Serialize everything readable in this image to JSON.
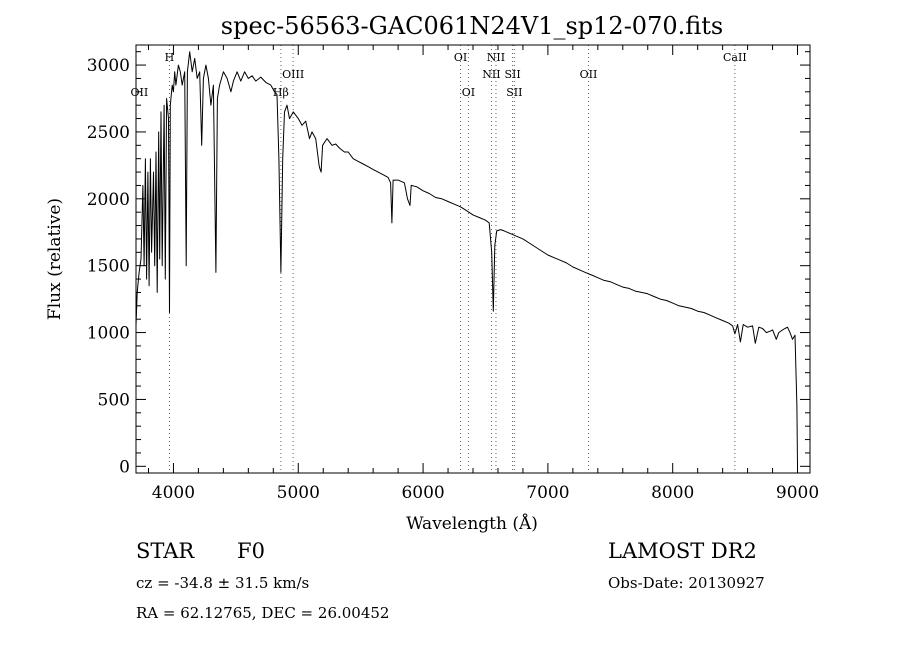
{
  "chart_data": {
    "type": "line",
    "title": "spec-56563-GAC061N24V1_sp12-070.fits",
    "xlabel": "Wavelength (Å)",
    "ylabel": "Flux (relative)",
    "xlim": [
      3700,
      9100
    ],
    "ylim": [
      -50,
      3150
    ],
    "xticks": [
      4000,
      5000,
      6000,
      7000,
      8000,
      9000
    ],
    "yticks": [
      0,
      500,
      1000,
      1500,
      2000,
      2500,
      3000
    ],
    "xtick_labels": [
      "4000",
      "5000",
      "6000",
      "7000",
      "8000",
      "9000"
    ],
    "ytick_labels": [
      "0",
      "500",
      "1000",
      "1500",
      "2000",
      "2500",
      "3000"
    ],
    "grid": false,
    "series": [
      {
        "color": "#000000",
        "points": [
          [
            3700,
            1050
          ],
          [
            3710,
            1300
          ],
          [
            3725,
            1450
          ],
          [
            3740,
            1550
          ],
          [
            3755,
            2100
          ],
          [
            3765,
            1500
          ],
          [
            3775,
            2300
          ],
          [
            3785,
            1400
          ],
          [
            3795,
            2200
          ],
          [
            3805,
            1350
          ],
          [
            3815,
            2300
          ],
          [
            3825,
            1600
          ],
          [
            3840,
            2200
          ],
          [
            3850,
            1500
          ],
          [
            3860,
            2350
          ],
          [
            3870,
            1300
          ],
          [
            3882,
            2500
          ],
          [
            3890,
            1550
          ],
          [
            3900,
            2650
          ],
          [
            3910,
            1500
          ],
          [
            3925,
            2700
          ],
          [
            3935,
            1400
          ],
          [
            3945,
            2750
          ],
          [
            3960,
            2600
          ],
          [
            3968,
            1150
          ],
          [
            3975,
            2700
          ],
          [
            3990,
            2850
          ],
          [
            4000,
            2800
          ],
          [
            4010,
            2950
          ],
          [
            4020,
            2850
          ],
          [
            4040,
            3000
          ],
          [
            4055,
            2950
          ],
          [
            4070,
            2850
          ],
          [
            4090,
            2950
          ],
          [
            4102,
            1500
          ],
          [
            4112,
            2950
          ],
          [
            4130,
            3100
          ],
          [
            4150,
            2950
          ],
          [
            4170,
            3050
          ],
          [
            4190,
            2900
          ],
          [
            4210,
            2950
          ],
          [
            4226,
            2400
          ],
          [
            4240,
            2900
          ],
          [
            4260,
            3000
          ],
          [
            4280,
            2900
          ],
          [
            4300,
            2700
          ],
          [
            4320,
            2850
          ],
          [
            4340,
            1450
          ],
          [
            4352,
            2750
          ],
          [
            4370,
            2850
          ],
          [
            4400,
            2950
          ],
          [
            4430,
            2900
          ],
          [
            4460,
            2800
          ],
          [
            4480,
            2880
          ],
          [
            4510,
            2950
          ],
          [
            4540,
            2880
          ],
          [
            4570,
            2950
          ],
          [
            4600,
            2900
          ],
          [
            4630,
            2920
          ],
          [
            4660,
            2880
          ],
          [
            4700,
            2910
          ],
          [
            4740,
            2870
          ],
          [
            4780,
            2850
          ],
          [
            4810,
            2800
          ],
          [
            4830,
            2780
          ],
          [
            4845,
            2300
          ],
          [
            4861,
            1450
          ],
          [
            4875,
            2300
          ],
          [
            4890,
            2650
          ],
          [
            4910,
            2700
          ],
          [
            4930,
            2600
          ],
          [
            4960,
            2650
          ],
          [
            5000,
            2600
          ],
          [
            5030,
            2550
          ],
          [
            5060,
            2580
          ],
          [
            5090,
            2450
          ],
          [
            5110,
            2500
          ],
          [
            5140,
            2450
          ],
          [
            5167,
            2250
          ],
          [
            5172,
            2230
          ],
          [
            5183,
            2200
          ],
          [
            5195,
            2400
          ],
          [
            5230,
            2450
          ],
          [
            5270,
            2400
          ],
          [
            5300,
            2410
          ],
          [
            5330,
            2380
          ],
          [
            5370,
            2350
          ],
          [
            5400,
            2350
          ],
          [
            5440,
            2300
          ],
          [
            5480,
            2280
          ],
          [
            5520,
            2260
          ],
          [
            5560,
            2240
          ],
          [
            5600,
            2220
          ],
          [
            5640,
            2200
          ],
          [
            5680,
            2180
          ],
          [
            5720,
            2160
          ],
          [
            5740,
            2120
          ],
          [
            5750,
            1820
          ],
          [
            5760,
            2140
          ],
          [
            5800,
            2140
          ],
          [
            5850,
            2120
          ],
          [
            5875,
            2000
          ],
          [
            5895,
            1950
          ],
          [
            5905,
            2100
          ],
          [
            5950,
            2090
          ],
          [
            6000,
            2060
          ],
          [
            6050,
            2040
          ],
          [
            6100,
            2010
          ],
          [
            6150,
            2000
          ],
          [
            6200,
            1980
          ],
          [
            6250,
            1960
          ],
          [
            6300,
            1940
          ],
          [
            6350,
            1910
          ],
          [
            6400,
            1880
          ],
          [
            6450,
            1860
          ],
          [
            6500,
            1840
          ],
          [
            6530,
            1820
          ],
          [
            6550,
            1600
          ],
          [
            6563,
            1160
          ],
          [
            6575,
            1650
          ],
          [
            6590,
            1760
          ],
          [
            6620,
            1770
          ],
          [
            6650,
            1760
          ],
          [
            6700,
            1740
          ],
          [
            6750,
            1720
          ],
          [
            6800,
            1700
          ],
          [
            6850,
            1670
          ],
          [
            6900,
            1640
          ],
          [
            6950,
            1610
          ],
          [
            7000,
            1580
          ],
          [
            7050,
            1560
          ],
          [
            7100,
            1540
          ],
          [
            7150,
            1520
          ],
          [
            7200,
            1490
          ],
          [
            7250,
            1470
          ],
          [
            7300,
            1450
          ],
          [
            7350,
            1430
          ],
          [
            7400,
            1410
          ],
          [
            7450,
            1390
          ],
          [
            7500,
            1380
          ],
          [
            7550,
            1360
          ],
          [
            7600,
            1340
          ],
          [
            7650,
            1330
          ],
          [
            7700,
            1310
          ],
          [
            7750,
            1300
          ],
          [
            7800,
            1290
          ],
          [
            7850,
            1270
          ],
          [
            7900,
            1250
          ],
          [
            7950,
            1240
          ],
          [
            8000,
            1220
          ],
          [
            8050,
            1200
          ],
          [
            8100,
            1190
          ],
          [
            8150,
            1180
          ],
          [
            8200,
            1160
          ],
          [
            8250,
            1150
          ],
          [
            8300,
            1130
          ],
          [
            8350,
            1110
          ],
          [
            8400,
            1090
          ],
          [
            8450,
            1070
          ],
          [
            8480,
            1050
          ],
          [
            8498,
            990
          ],
          [
            8520,
            1060
          ],
          [
            8542,
            930
          ],
          [
            8565,
            1060
          ],
          [
            8600,
            1040
          ],
          [
            8640,
            1050
          ],
          [
            8662,
            920
          ],
          [
            8690,
            1040
          ],
          [
            8720,
            1030
          ],
          [
            8750,
            1000
          ],
          [
            8780,
            1010
          ],
          [
            8800,
            1020
          ],
          [
            8830,
            950
          ],
          [
            8850,
            1000
          ],
          [
            8880,
            1020
          ],
          [
            8900,
            1030
          ],
          [
            8920,
            1040
          ],
          [
            8940,
            1000
          ],
          [
            8960,
            950
          ],
          [
            8980,
            980
          ],
          [
            8995,
            450
          ],
          [
            9000,
            0
          ]
        ]
      }
    ],
    "annotations": [
      {
        "label": "OII",
        "x": 3727,
        "row": 2
      },
      {
        "label": "H",
        "x": 3968,
        "row": 0
      },
      {
        "label": "OIII",
        "x": 4959,
        "row": 1
      },
      {
        "label": "Hβ",
        "x": 4861,
        "row": 2
      },
      {
        "label": "OI",
        "x": 6300,
        "row": 0
      },
      {
        "label": "OI",
        "x": 6363,
        "row": 2
      },
      {
        "label": "NII",
        "x": 6584,
        "row": 0
      },
      {
        "label": "NII",
        "x": 6548,
        "row": 1
      },
      {
        "label": "SII",
        "x": 6717,
        "row": 1
      },
      {
        "label": "SII",
        "x": 6731,
        "row": 2
      },
      {
        "label": "OII",
        "x": 7325,
        "row": 1
      },
      {
        "label": "CaII",
        "x": 8498,
        "row": 0
      }
    ],
    "line_markers": [
      3968,
      4861,
      4959,
      6300,
      6363,
      6548,
      6584,
      6717,
      6731,
      7325,
      8498
    ]
  },
  "info": {
    "object_class": "STAR",
    "subclass": "F0",
    "survey": "LAMOST DR2",
    "cz": "cz = -34.8 ± 31.5 km/s",
    "obs_date": "Obs-Date: 20130927",
    "coords": "RA =  62.12765, DEC =  26.00452"
  }
}
